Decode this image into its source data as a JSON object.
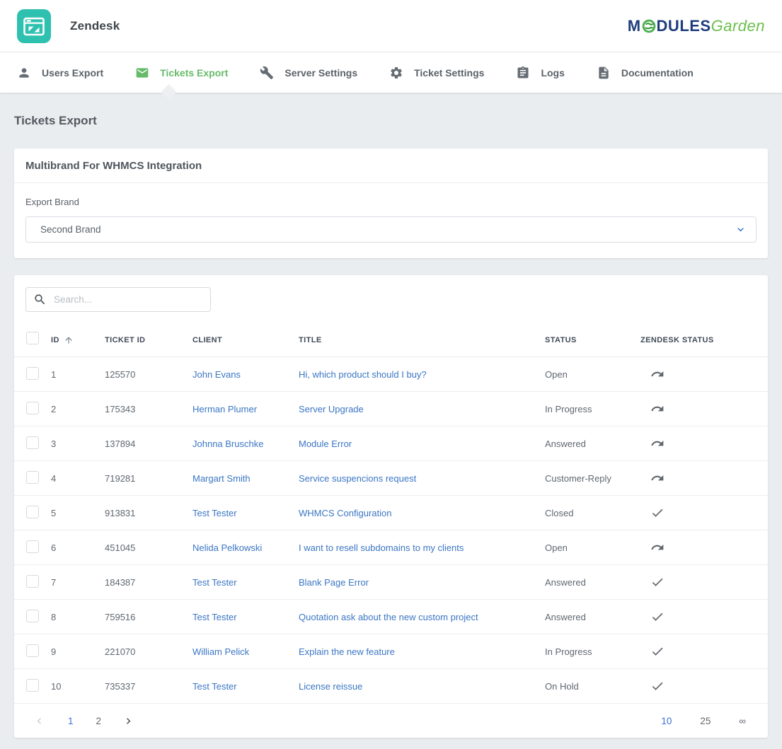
{
  "header": {
    "title": "Zendesk"
  },
  "brand_logo": {
    "part1": "M",
    "part2": "DULES",
    "part3": "Garden"
  },
  "nav": {
    "items": [
      {
        "id": "users-export",
        "label": "Users Export",
        "icon": "person",
        "active": false
      },
      {
        "id": "tickets-export",
        "label": "Tickets Export",
        "icon": "mail",
        "active": true
      },
      {
        "id": "server-settings",
        "label": "Server Settings",
        "icon": "wrench",
        "active": false
      },
      {
        "id": "ticket-settings",
        "label": "Ticket Settings",
        "icon": "gear",
        "active": false
      },
      {
        "id": "logs",
        "label": "Logs",
        "icon": "clipboard",
        "active": false
      },
      {
        "id": "documentation",
        "label": "Documentation",
        "icon": "document",
        "active": false
      }
    ]
  },
  "page": {
    "title": "Tickets Export"
  },
  "multibrand_card": {
    "title": "Multibrand For WHMCS Integration",
    "export_brand_label": "Export Brand",
    "selected_brand": "Second Brand"
  },
  "tickets_table": {
    "search_placeholder": "Search...",
    "columns": [
      "ID",
      "TICKET ID",
      "CLIENT",
      "TITLE",
      "STATUS",
      "ZENDESK STATUS"
    ],
    "sorted_column": "ID",
    "sort_direction": "asc",
    "rows": [
      {
        "id": "1",
        "ticket_id": "125570",
        "client": "John Evans",
        "title": "Hi, which product should I buy?",
        "status": "Open",
        "zendesk_status_icon": "redo"
      },
      {
        "id": "2",
        "ticket_id": "175343",
        "client": "Herman Plumer",
        "title": "Server Upgrade",
        "status": "In Progress",
        "zendesk_status_icon": "redo"
      },
      {
        "id": "3",
        "ticket_id": "137894",
        "client": "Johnna Bruschke",
        "title": "Module Error",
        "status": "Answered",
        "zendesk_status_icon": "redo"
      },
      {
        "id": "4",
        "ticket_id": "719281",
        "client": "Margart Smith",
        "title": "Service suspencions request",
        "status": "Customer-Reply",
        "zendesk_status_icon": "redo"
      },
      {
        "id": "5",
        "ticket_id": "913831",
        "client": "Test Tester",
        "title": "WHMCS Configuration",
        "status": "Closed",
        "zendesk_status_icon": "check"
      },
      {
        "id": "6",
        "ticket_id": "451045",
        "client": "Nelida Pelkowski",
        "title": "I want to resell subdomains to my clients",
        "status": "Open",
        "zendesk_status_icon": "redo"
      },
      {
        "id": "7",
        "ticket_id": "184387",
        "client": "Test Tester",
        "title": "Blank Page Error",
        "status": "Answered",
        "zendesk_status_icon": "check"
      },
      {
        "id": "8",
        "ticket_id": "759516",
        "client": "Test Tester",
        "title": "Quotation ask about the new custom project",
        "status": "Answered",
        "zendesk_status_icon": "check"
      },
      {
        "id": "9",
        "ticket_id": "221070",
        "client": "William Pelick",
        "title": "Explain the new feature",
        "status": "In Progress",
        "zendesk_status_icon": "check"
      },
      {
        "id": "10",
        "ticket_id": "735337",
        "client": "Test Tester",
        "title": "License reissue",
        "status": "On Hold",
        "zendesk_status_icon": "check"
      }
    ]
  },
  "pagination": {
    "pages": [
      "1",
      "2"
    ],
    "active_page": "1",
    "per_page_options": [
      "10",
      "25",
      "∞"
    ],
    "active_per_page": "10"
  },
  "colors": {
    "accent_green": "#66bb6a",
    "logo_teal": "#2fc1af",
    "link_blue": "#3b76c4",
    "pagination_blue": "#3a6fd8",
    "brand_navy": "#1f3d7c",
    "brand_green": "#6abf4b"
  }
}
